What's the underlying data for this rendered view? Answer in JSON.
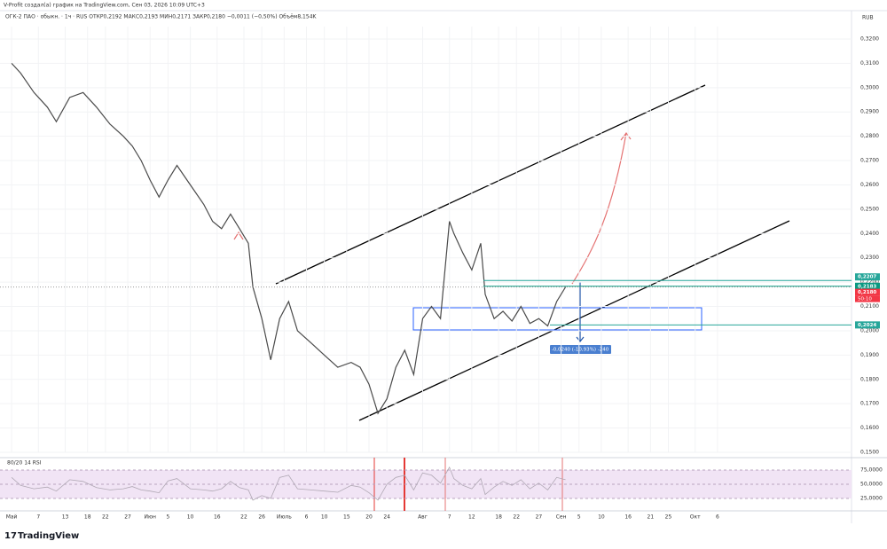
{
  "header": {
    "attribution": "V-Profit создал(а) график на TradingView.com, Сен 03, 2026 10:09 UTC+3",
    "legend": "ОГК-2 ПАО · обыкн. · 1ч · RUS  ОТКР0,2192  МАКС0,2193  МИН0,2171  ЗАКР0,2180  −0,0011 (−0,50%)  Объём8,154K",
    "currency": "RUB",
    "footer": "TradingView"
  },
  "chart_data": [
    {
      "type": "line",
      "color": "#4a4a4a",
      "x": [
        121,
        123,
        126,
        129,
        131,
        134,
        137,
        140,
        143,
        146,
        148,
        150,
        152,
        154,
        156,
        158,
        161,
        164,
        166,
        168,
        170,
        172,
        174,
        175,
        177,
        179,
        181,
        183,
        185,
        188,
        191,
        194,
        197,
        199,
        201,
        203,
        205,
        207,
        209,
        211,
        213,
        215,
        217,
        219,
        220,
        222,
        224,
        226,
        227,
        229,
        231,
        233,
        235,
        237,
        239,
        241,
        243,
        245
      ],
      "values": [
        0.31,
        0.306,
        0.298,
        0.292,
        0.286,
        0.296,
        0.298,
        0.292,
        0.285,
        0.28,
        0.276,
        0.27,
        0.262,
        0.255,
        0.262,
        0.268,
        0.26,
        0.252,
        0.245,
        0.242,
        0.248,
        0.242,
        0.236,
        0.218,
        0.205,
        0.188,
        0.205,
        0.212,
        0.2,
        0.195,
        0.19,
        0.185,
        0.187,
        0.185,
        0.178,
        0.166,
        0.172,
        0.185,
        0.192,
        0.182,
        0.205,
        0.21,
        0.205,
        0.245,
        0.24,
        0.232,
        0.225,
        0.236,
        0.215,
        0.205,
        0.208,
        0.204,
        0.21,
        0.203,
        0.205,
        0.202,
        0.212,
        0.218
      ],
      "xlim": [
        118.4,
        309
      ],
      "xticks": [
        {
          "value": 121,
          "label": "Май"
        },
        {
          "value": 127,
          "label": "7"
        },
        {
          "value": 133,
          "label": "13"
        },
        {
          "value": 138,
          "label": "18"
        },
        {
          "value": 142,
          "label": "22"
        },
        {
          "value": 147,
          "label": "27"
        },
        {
          "value": 152,
          "label": "Июн"
        },
        {
          "value": 156,
          "label": "5"
        },
        {
          "value": 161,
          "label": "10"
        },
        {
          "value": 167,
          "label": "16"
        },
        {
          "value": 173,
          "label": "22"
        },
        {
          "value": 177,
          "label": "26"
        },
        {
          "value": 182,
          "label": "Июль"
        },
        {
          "value": 187,
          "label": "6"
        },
        {
          "value": 191,
          "label": "10"
        },
        {
          "value": 196,
          "label": "15"
        },
        {
          "value": 201,
          "label": "20"
        },
        {
          "value": 205,
          "label": "24"
        },
        {
          "value": 213,
          "label": "Авг"
        },
        {
          "value": 219,
          "label": "7"
        },
        {
          "value": 224,
          "label": "12"
        },
        {
          "value": 230,
          "label": "18"
        },
        {
          "value": 234,
          "label": "22"
        },
        {
          "value": 239,
          "label": "27"
        },
        {
          "value": 244,
          "label": "Сен"
        },
        {
          "value": 248,
          "label": "5"
        },
        {
          "value": 253,
          "label": "10"
        },
        {
          "value": 259,
          "label": "16"
        },
        {
          "value": 264,
          "label": "21"
        },
        {
          "value": 268,
          "label": "25"
        },
        {
          "value": 274,
          "label": "Окт"
        },
        {
          "value": 279,
          "label": "6"
        }
      ],
      "ylim": [
        0.15,
        0.32
      ],
      "yticks": [
        {
          "value": 0.32,
          "label": "0,3200"
        },
        {
          "value": 0.31,
          "label": "0,3100"
        },
        {
          "value": 0.3,
          "label": "0,3000"
        },
        {
          "value": 0.29,
          "label": "0,2900"
        },
        {
          "value": 0.28,
          "label": "0,2800"
        },
        {
          "value": 0.27,
          "label": "0,2700"
        },
        {
          "value": 0.26,
          "label": "0,2600"
        },
        {
          "value": 0.25,
          "label": "0,2500"
        },
        {
          "value": 0.24,
          "label": "0,2400"
        },
        {
          "value": 0.23,
          "label": "0,2300"
        },
        {
          "value": 0.22,
          "label": "0,2200"
        },
        {
          "value": 0.21,
          "label": "0,2100"
        },
        {
          "value": 0.2,
          "label": "0,2000"
        },
        {
          "value": 0.19,
          "label": "0,1900"
        },
        {
          "value": 0.18,
          "label": "0,1800"
        },
        {
          "value": 0.17,
          "label": "0,1700"
        },
        {
          "value": 0.16,
          "label": "0,1600"
        },
        {
          "value": 0.15,
          "label": "0,1500"
        }
      ],
      "price_labels": [
        {
          "value": 0.2207,
          "label": "0,2207",
          "color": "#26a69a"
        },
        {
          "value": 0.2183,
          "label": "0,2183",
          "color": "#089981"
        },
        {
          "value": 0.218,
          "label": "0,2180",
          "color": "#f23645"
        },
        {
          "value": 0.2024,
          "label": "0,2024",
          "color": "#26a69a"
        }
      ],
      "countdown": "50:10",
      "measure_label": "-0,0240 (-10,93%) -240"
    },
    {
      "type": "line",
      "title": "80/20 14 RSI",
      "color": "#b0a8b4",
      "x": [
        121,
        123,
        126,
        129,
        131,
        134,
        137,
        140,
        143,
        146,
        148,
        150,
        152,
        154,
        156,
        158,
        161,
        164,
        166,
        168,
        170,
        172,
        174,
        175,
        177,
        179,
        181,
        183,
        185,
        188,
        191,
        194,
        197,
        199,
        201,
        203,
        205,
        207,
        209,
        211,
        213,
        215,
        217,
        219,
        220,
        222,
        224,
        226,
        227,
        229,
        231,
        233,
        235,
        237,
        239,
        241,
        243,
        245
      ],
      "values": [
        62,
        48,
        42,
        45,
        38,
        58,
        55,
        44,
        40,
        42,
        46,
        40,
        38,
        35,
        56,
        60,
        42,
        40,
        38,
        42,
        55,
        44,
        40,
        22,
        30,
        25,
        62,
        66,
        42,
        40,
        38,
        36,
        48,
        45,
        35,
        22,
        50,
        62,
        66,
        40,
        70,
        66,
        52,
        80,
        60,
        48,
        42,
        60,
        32,
        45,
        55,
        48,
        58,
        42,
        52,
        40,
        62,
        58
      ],
      "xlim": [
        118.4,
        309
      ],
      "ylim": [
        0,
        100
      ],
      "yticks": [
        {
          "value": 75,
          "label": "75,0000"
        },
        {
          "value": 50,
          "label": "50,0000"
        },
        {
          "value": 25,
          "label": "25,0000"
        }
      ]
    }
  ]
}
